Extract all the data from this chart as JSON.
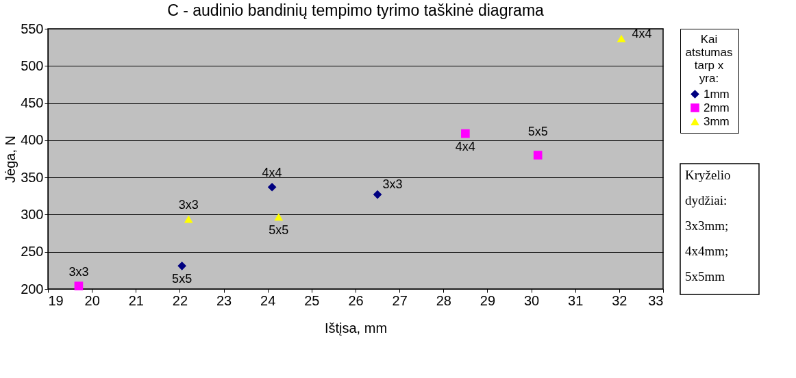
{
  "chart_data": {
    "type": "scatter",
    "title": "C - audinio bandinių tempimo tyrimo taškinė diagrama",
    "xlabel": "Ištįsa, mm",
    "ylabel": "Jėga, N",
    "legend_title": "Kai atstumas tarp x yra:",
    "legend": "right",
    "grid": "y",
    "xlim": [
      19,
      33
    ],
    "xticks": [
      19,
      20,
      21,
      22,
      23,
      24,
      25,
      26,
      27,
      28,
      29,
      30,
      31,
      32,
      33
    ],
    "ylim": [
      200,
      550
    ],
    "yticks": [
      200,
      250,
      300,
      350,
      400,
      450,
      500,
      550
    ],
    "series": [
      {
        "name": "1mm",
        "color": "#000080",
        "marker": "diamond",
        "x": [
          24.1,
          22.05,
          26.5
        ],
        "values": [
          337,
          231,
          327
        ]
      },
      {
        "name": "2mm",
        "color": "#ff00ff",
        "marker": "square",
        "x": [
          19.7,
          28.5,
          30.15
        ],
        "values": [
          204,
          409,
          380
        ]
      },
      {
        "name": "3mm",
        "color": "#ffff00",
        "marker": "triangle",
        "x": [
          22.2,
          24.25,
          32.05
        ],
        "values": [
          294,
          297,
          537
        ]
      }
    ],
    "annotations": [
      {
        "text": "4x4",
        "x": 24.1,
        "y": 337
      },
      {
        "text": "5x5",
        "x": 22.05,
        "y": 231
      },
      {
        "text": "3x3",
        "x": 26.5,
        "y": 327
      },
      {
        "text": "3x3",
        "x": 19.7,
        "y": 204
      },
      {
        "text": "4x4",
        "x": 28.5,
        "y": 409
      },
      {
        "text": "5x5",
        "x": 30.15,
        "y": 380
      },
      {
        "text": "3x3",
        "x": 22.2,
        "y": 294
      },
      {
        "text": "5x5",
        "x": 24.25,
        "y": 297
      },
      {
        "text": "4x4",
        "x": 32.05,
        "y": 537
      },
      "Kryželio dydžiai:",
      "3x3mm;",
      "4x4mm;",
      "5x5mm"
    ]
  }
}
